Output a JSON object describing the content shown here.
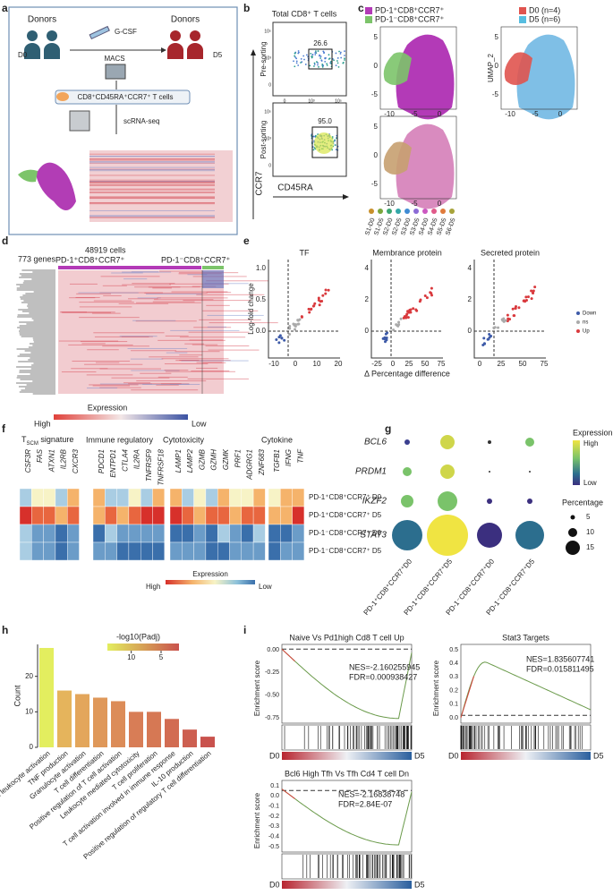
{
  "panel_labels": [
    "a",
    "b",
    "c",
    "d",
    "e",
    "f",
    "g",
    "h",
    "i"
  ],
  "a": {
    "donors_left": "Donors",
    "donors_right": "Donors",
    "drug": "G-CSF",
    "method": "MACS",
    "day0": "D0",
    "day5": "D5",
    "cells": "CD8⁺CD45RA⁺CCR7⁺ T cells",
    "assay": "scRNA-seq"
  },
  "b": {
    "title": "Total CD8⁺ T cells",
    "pre": "Pre-sorting",
    "post": "Post-sorting",
    "y_label": "CCR7",
    "x_label": "CD45RA",
    "pre_gate": "26.6",
    "post_gate": "95.0",
    "ticks_y": [
      "10⁵",
      "10³",
      "0"
    ],
    "ticks_x": [
      "0",
      "10³",
      "10⁵"
    ]
  },
  "c": {
    "legend_left": [
      "PD-1⁺CD8⁺CCR7⁺",
      "PD-1⁻CD8⁺CCR7⁺"
    ],
    "legend_right": [
      "D0 (n=4)",
      "D5 (n=6)"
    ],
    "y_label": "UMAP_2",
    "ticks_y": [
      "5",
      "0",
      "-5"
    ],
    "ticks_x": [
      "-10",
      "-5",
      "0"
    ],
    "samples": [
      "S1-D0",
      "S1-D5",
      "S2-D0",
      "S2-D5",
      "S3-D0",
      "S3-D5",
      "S4-D0",
      "S4-D5",
      "S5-D5",
      "S6-D5"
    ]
  },
  "d": {
    "genes": "773 genes",
    "cells": "48919 cells",
    "group1": "PD-1⁺CD8⁺CCR7⁺",
    "group2": "PD-1⁻CD8⁺CCR7⁺",
    "legend_title": "Expression",
    "high": "High",
    "low": "Low"
  },
  "e": {
    "titles": [
      "TF",
      "Membrance protein",
      "Secreted protein"
    ],
    "y_label": "Log-fold change",
    "x_label": "Δ Percentage difference",
    "legend": [
      "Down",
      "ns",
      "Up"
    ],
    "ticks_y": [
      [
        "1.0",
        "0.5",
        "0.0"
      ],
      [
        "4",
        "2",
        "0"
      ],
      [
        "4",
        "2",
        "0"
      ]
    ],
    "ticks_x": [
      [
        "-10",
        "0",
        "10",
        "20"
      ],
      [
        "-25",
        "0",
        "25",
        "50",
        "75"
      ],
      [
        "0",
        "25",
        "50",
        "75"
      ]
    ]
  },
  "f": {
    "first_group": {
      "main": "T",
      "sub": "SCM",
      "rest": " signature"
    },
    "groups": [
      "Immune regulatory",
      "Cytotoxicity",
      "Cytokine"
    ],
    "genes": [
      [
        "CSF3R",
        "FAS",
        "ATXN1",
        "IL2RB",
        "CXCR3"
      ],
      [
        "PDCD1",
        "ENTPD1",
        "CTLA4",
        "IL2RA",
        "TNFRSF9",
        "TNFRSF18"
      ],
      [
        "LAMP1",
        "LAMP2",
        "GZMB",
        "GZMH",
        "GZMK",
        "PRF1",
        "ADGRG1",
        "ZNF683"
      ],
      [
        "TGFB1",
        "IFNG",
        "TNF"
      ]
    ],
    "rows": [
      "PD-1⁺CD8⁺CCR7⁺ D0",
      "PD-1⁺CD8⁺CCR7⁺ D5",
      "PD-1⁻CD8⁺CCR7⁺ D0",
      "PD-1⁻CD8⁺CCR7⁺ D5"
    ],
    "legend_title": "Expression",
    "high": "High",
    "low": "Low"
  },
  "g": {
    "genes": [
      "BCL6",
      "PRDM1",
      "IKZF2",
      "STAT3"
    ],
    "columns": [
      "PD-1⁺CD8⁺CCR7⁺D0",
      "PD-1⁺CD8⁺CCR7⁺D5",
      "PD-1⁻CD8⁺CCR7⁺D0",
      "PD-1⁻CD8⁺CCR7⁺D5"
    ],
    "expression_title": "Expression",
    "high": "High",
    "low": "Low",
    "percentage_title": "Percentage",
    "sizes": [
      "5",
      "10",
      "15"
    ]
  },
  "chart_data": {
    "type": "bar",
    "ylabel": "Count",
    "categories": [
      "Myeloid leukocyte activation",
      "TNF production",
      "Granulocyte activation",
      "T cell differentiation",
      "Positive regulation of T cell activation",
      "Leukocyte mediated cytotoxicity",
      "T cell proliferation",
      "T cell activation involved in immune response",
      "IL-10 production",
      "Positive regulation of regulatory T cell differentiation"
    ],
    "values": [
      28,
      16,
      15,
      14,
      13,
      10,
      10,
      8,
      5,
      3
    ],
    "colors": [
      "#e3ee5f",
      "#e5b45c",
      "#e3a65b",
      "#df985a",
      "#dc8c58",
      "#d87d56",
      "#d67854",
      "#d26c52",
      "#cd5f50",
      "#c9524d"
    ],
    "ylim": [
      0,
      29
    ],
    "yticks": [
      0,
      10,
      20
    ],
    "colorbar": {
      "title": "-log10(Padj)",
      "lim": [
        14,
        2
      ],
      "ticks": [
        10,
        5
      ]
    }
  },
  "i": {
    "y_label": "Enrichment score",
    "left": "D0",
    "right": "D5",
    "plots": [
      {
        "title": "Naive Vs Pd1high Cd8 T cell Up",
        "nes": "NES=-2.160255945",
        "fdr": "FDR=0.000938427",
        "ticks": [
          "0.00",
          "-0.25",
          "-0.50",
          "-0.75"
        ]
      },
      {
        "title": "Stat3 Targets",
        "nes": "NES=1.835607741",
        "fdr": "FDR=0.015811495",
        "ticks": [
          "0.5",
          "0.4",
          "0.3",
          "0.2",
          "0.1",
          "0.0"
        ]
      },
      {
        "title": "Bcl6 High Tfh Vs Tfh Cd4 T cell Dn",
        "nes": "NES=-2.16838748",
        "fdr": "FDR=2.84E-07",
        "ticks": [
          "0.1",
          "0.0",
          "-0.1",
          "-0.2",
          "-0.3",
          "-0.4",
          "-0.5"
        ]
      }
    ]
  }
}
